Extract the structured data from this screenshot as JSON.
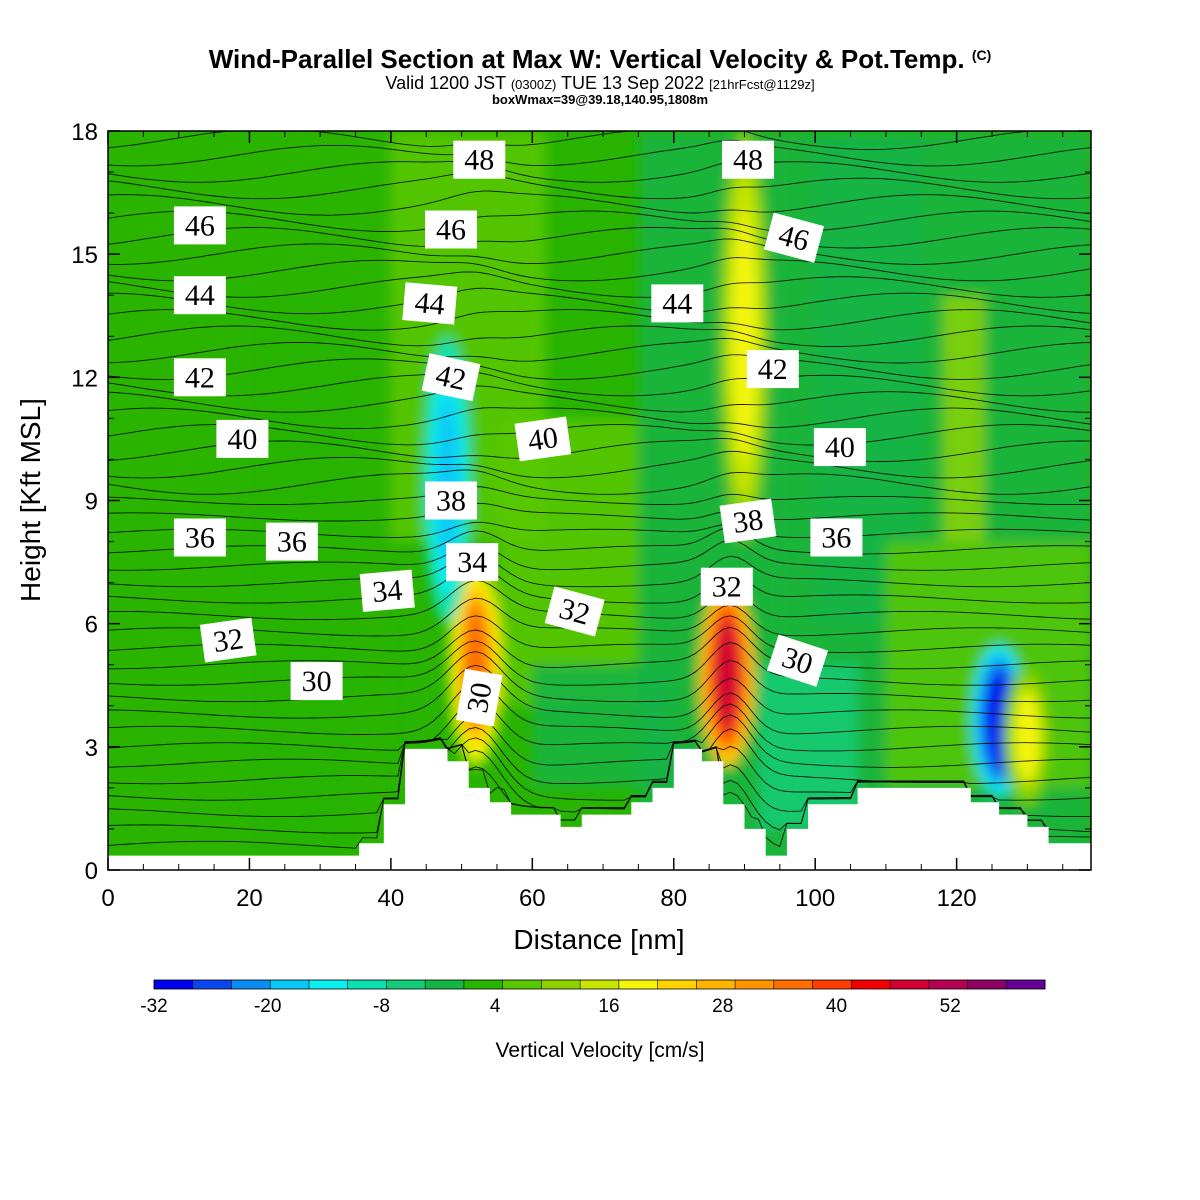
{
  "chart_data": {
    "type": "heatmap",
    "title": "Wind-Parallel Section at Max W: Vertical Velocity & Pot.Temp.",
    "title_mark": "(C)",
    "subtitle_parts": [
      "Valid 1200 JST ",
      "(0300Z)",
      " TUE 13 Sep 2022 ",
      "[21hrFcst@1129z]"
    ],
    "subtitle2": "boxWmax=39@39.18,140.95,1808m",
    "xlabel": "Distance [nm]",
    "ylabel": "Height [Kft MSL]",
    "xlim": [
      0,
      139
    ],
    "ylim": [
      0,
      18
    ],
    "x_ticks": [
      "0",
      "20",
      "40",
      "60",
      "80",
      "100",
      "120"
    ],
    "y_ticks": [
      "0",
      "3",
      "6",
      "9",
      "12",
      "15",
      "18"
    ],
    "colorbar": {
      "label": "Vertical Velocity [cm/s]",
      "min": -32,
      "max": 58,
      "step": 4,
      "tick_labels": [
        "-32",
        "-20",
        "-8",
        "4",
        "16",
        "28",
        "40",
        "52"
      ],
      "colors": [
        "#0000f0",
        "#0a46f0",
        "#0a8cf0",
        "#0ac8f5",
        "#0af0f0",
        "#0ae0b0",
        "#14cc78",
        "#14b446",
        "#28b400",
        "#5ac800",
        "#8cd200",
        "#c8e600",
        "#f5f50a",
        "#ffd200",
        "#ffb400",
        "#ff9600",
        "#ff6e00",
        "#ff3c00",
        "#f00000",
        "#d20032",
        "#b40050",
        "#8c0064",
        "#640096"
      ]
    },
    "velocity_features": [
      {
        "x": 52,
        "z_bottom": 2.5,
        "z_top": 7.5,
        "peak_cms": 32
      },
      {
        "x": 87.5,
        "z_bottom": 2.5,
        "z_top": 7.0,
        "peak_cms": 44
      },
      {
        "x": 90,
        "z_bottom": 8,
        "z_top": 18,
        "peak_cms": 18
      },
      {
        "x": 126,
        "z_bottom": 1.8,
        "z_top": 5.5,
        "peak_cms": -30
      },
      {
        "x": 130,
        "z_bottom": 1.5,
        "z_top": 5.0,
        "peak_cms": 16
      },
      {
        "x": 48,
        "z_bottom": 6,
        "z_top": 13,
        "peak_cms": -18
      }
    ],
    "isentropes": [
      {
        "label": "30",
        "x": 29.5,
        "z": 4.6
      },
      {
        "label": "30",
        "x": 52.5,
        "z": 4.2
      },
      {
        "label": "30",
        "x": 97.5,
        "z": 5.1
      },
      {
        "label": "32",
        "x": 17,
        "z": 5.6
      },
      {
        "label": "32",
        "x": 66,
        "z": 6.3
      },
      {
        "label": "32",
        "x": 87.5,
        "z": 6.9
      },
      {
        "label": "34",
        "x": 39.5,
        "z": 6.8
      },
      {
        "label": "34",
        "x": 51.5,
        "z": 7.5
      },
      {
        "label": "36",
        "x": 13,
        "z": 8.1
      },
      {
        "label": "36",
        "x": 26,
        "z": 8.0
      },
      {
        "label": "36",
        "x": 103,
        "z": 8.1
      },
      {
        "label": "38",
        "x": 48.5,
        "z": 9.0
      },
      {
        "label": "38",
        "x": 90.5,
        "z": 8.5
      },
      {
        "label": "40",
        "x": 19,
        "z": 10.5
      },
      {
        "label": "40",
        "x": 61.5,
        "z": 10.5
      },
      {
        "label": "40",
        "x": 103.5,
        "z": 10.3
      },
      {
        "label": "42",
        "x": 13,
        "z": 12.0
      },
      {
        "label": "42",
        "x": 48.5,
        "z": 12.0
      },
      {
        "label": "42",
        "x": 94,
        "z": 12.2
      },
      {
        "label": "44",
        "x": 13,
        "z": 14.0
      },
      {
        "label": "44",
        "x": 45.5,
        "z": 13.8
      },
      {
        "label": "44",
        "x": 80.5,
        "z": 13.8
      },
      {
        "label": "46",
        "x": 13,
        "z": 15.7
      },
      {
        "label": "46",
        "x": 48.5,
        "z": 15.6
      },
      {
        "label": "46",
        "x": 97,
        "z": 15.4
      },
      {
        "label": "48",
        "x": 52.5,
        "z": 17.3
      },
      {
        "label": "48",
        "x": 90.5,
        "z": 17.3
      }
    ],
    "terrain": {
      "x": [
        0,
        35.5,
        35.5,
        39,
        39,
        42,
        42,
        48,
        48,
        51,
        51,
        54,
        54,
        57,
        57,
        64,
        64,
        67,
        67,
        74,
        74,
        77,
        77,
        80,
        80,
        84,
        84,
        87,
        87,
        90,
        90,
        93,
        93,
        96,
        96,
        99,
        99,
        106,
        106,
        122,
        122,
        126,
        126,
        130,
        130,
        133,
        133,
        139
      ],
      "z": [
        0.35,
        0.35,
        0.65,
        0.65,
        1.6,
        1.6,
        2.95,
        2.95,
        2.65,
        2.65,
        2.0,
        2.0,
        1.65,
        1.65,
        1.35,
        1.35,
        1.05,
        1.05,
        1.35,
        1.35,
        1.65,
        1.65,
        2.0,
        2.0,
        2.95,
        2.95,
        2.65,
        2.65,
        1.6,
        1.6,
        1.0,
        1.0,
        0.35,
        0.35,
        1.0,
        1.0,
        1.6,
        1.6,
        2.0,
        2.0,
        1.65,
        1.65,
        1.35,
        1.35,
        1.05,
        1.05,
        0.65,
        0.65
      ]
    }
  }
}
